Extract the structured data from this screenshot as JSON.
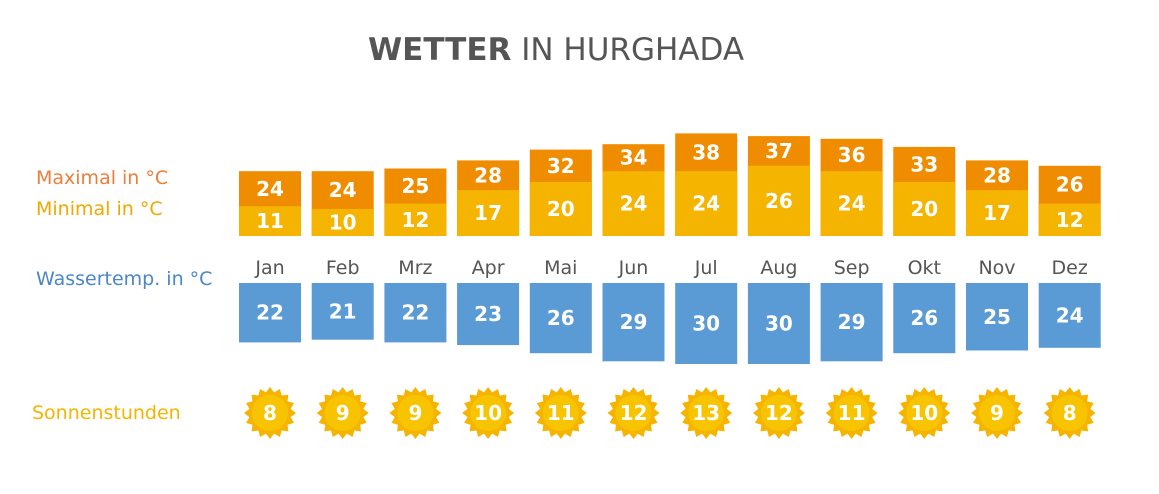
{
  "chart_data": {
    "type": "climate",
    "title_parts": [
      "WETTER",
      "IN HURGHADA"
    ],
    "categories": [
      "Jan",
      "Feb",
      "Mrz",
      "Apr",
      "Mai",
      "Jun",
      "Jul",
      "Aug",
      "Sep",
      "Okt",
      "Nov",
      "Dez"
    ],
    "series": [
      {
        "name": "Maximal in °C",
        "color": "#f08c00",
        "values": [
          24,
          24,
          25,
          28,
          32,
          34,
          38,
          37,
          36,
          33,
          28,
          26
        ]
      },
      {
        "name": "Minimal in °C",
        "color": "#f5b400",
        "values": [
          11,
          10,
          12,
          17,
          20,
          24,
          24,
          26,
          24,
          20,
          17,
          12
        ]
      },
      {
        "name": "Wassertemp. in °C",
        "color": "#5b9bd5",
        "values": [
          22,
          21,
          22,
          23,
          26,
          29,
          30,
          30,
          29,
          26,
          25,
          24
        ]
      },
      {
        "name": "Sonnenstunden",
        "color": "#f5b400",
        "values": [
          8,
          9,
          9,
          10,
          11,
          12,
          13,
          12,
          11,
          10,
          9,
          8
        ]
      }
    ]
  }
}
